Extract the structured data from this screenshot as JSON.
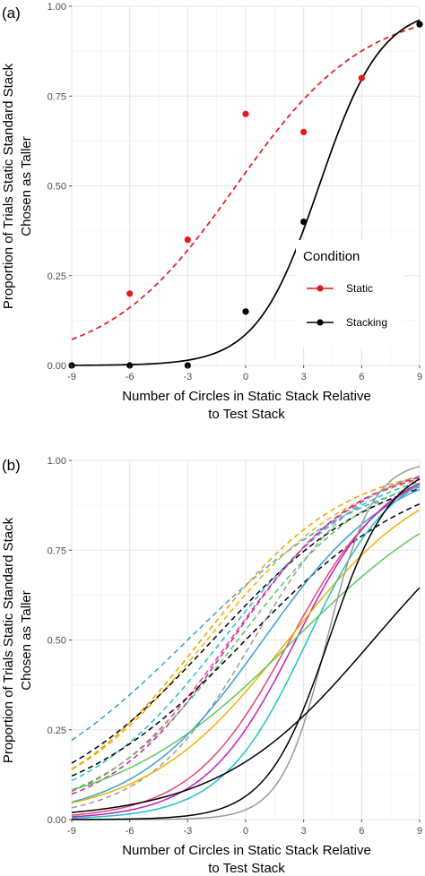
{
  "chart_data": [
    {
      "panel_tag": "(a)",
      "type": "scatter",
      "xlabel": [
        "Number of Circles in Static Stack Relative",
        "to Test Stack"
      ],
      "ylabel": [
        "Proportion of Trials Static Standard Stack",
        "Chosen as Taller"
      ],
      "xlim": [
        -9,
        9
      ],
      "ylim": [
        0,
        1
      ],
      "xticks": [
        -9,
        -6,
        -3,
        0,
        3,
        6,
        9
      ],
      "yticks": [
        0,
        0.25,
        0.5,
        0.75,
        1
      ],
      "xtick_labels": [
        "-9",
        "-6",
        "-3",
        "0",
        "3",
        "6",
        "9"
      ],
      "ytick_labels": [
        "0.00",
        "0.25",
        "0.50",
        "0.75",
        "1.00"
      ],
      "grid": true,
      "legend": {
        "title": "Condition",
        "placement": "right",
        "items": [
          {
            "label": "Static",
            "color": "#e31a1c"
          },
          {
            "label": "Stacking",
            "color": "#000000"
          }
        ]
      },
      "series": [
        {
          "name": "Static",
          "color": "#e31a1c",
          "points": [
            {
              "x": -9,
              "y": 0.0
            },
            {
              "x": -6,
              "y": 0.2
            },
            {
              "x": -3,
              "y": 0.35
            },
            {
              "x": 0,
              "y": 0.7
            },
            {
              "x": 3,
              "y": 0.65
            },
            {
              "x": 6,
              "y": 0.8
            },
            {
              "x": 9,
              "y": 0.95
            }
          ],
          "fit": {
            "model": "logistic",
            "midpoint": -0.5,
            "slope": 0.3,
            "dash": "6,4"
          }
        },
        {
          "name": "Stacking",
          "color": "#000000",
          "points": [
            {
              "x": -9,
              "y": 0.0
            },
            {
              "x": -6,
              "y": 0.0
            },
            {
              "x": -3,
              "y": 0.0
            },
            {
              "x": 0,
              "y": 0.15
            },
            {
              "x": 3,
              "y": 0.4
            },
            {
              "x": 9,
              "y": 0.95
            }
          ],
          "fit": {
            "model": "logistic",
            "midpoint": 3.8,
            "slope": 0.62,
            "dash": ""
          }
        }
      ]
    },
    {
      "panel_tag": "(b)",
      "type": "line",
      "xlabel": [
        "Number of Circles in Static Stack Relative",
        "to Test Stack"
      ],
      "ylabel": [
        "Proportion of Trials Static Standard Stack",
        "Chosen as Taller"
      ],
      "xlim": [
        -9,
        9
      ],
      "ylim": [
        0,
        1
      ],
      "xticks": [
        -9,
        -6,
        -3,
        0,
        3,
        6,
        9
      ],
      "yticks": [
        0,
        0.25,
        0.5,
        0.75,
        1
      ],
      "xtick_labels": [
        "-9",
        "-6",
        "-3",
        "0",
        "3",
        "6",
        "9"
      ],
      "ytick_labels": [
        "0.00",
        "0.25",
        "0.50",
        "0.75",
        "1.00"
      ],
      "grid": true,
      "curves": [
        {
          "color": "#3a9fd8",
          "dash": "6,4",
          "midpoint": -3.0,
          "slope": 0.21
        },
        {
          "color": "#f0b400",
          "dash": "6,4",
          "midpoint": -2.0,
          "slope": 0.26
        },
        {
          "color": "#f0a000",
          "dash": "6,4",
          "midpoint": -2.3,
          "slope": 0.27
        },
        {
          "color": "#000000",
          "dash": "6,4",
          "midpoint": -1.7,
          "slope": 0.23
        },
        {
          "color": "#1fc4c4",
          "dash": "6,4",
          "midpoint": -1.2,
          "slope": 0.27
        },
        {
          "color": "#e0457a",
          "dash": "6,4",
          "midpoint": -0.8,
          "slope": 0.3
        },
        {
          "color": "#c020c0",
          "dash": "6,4",
          "midpoint": -0.7,
          "slope": 0.31
        },
        {
          "color": "#5cc85c",
          "dash": "6,4",
          "midpoint": -0.4,
          "slope": 0.28
        },
        {
          "color": "#000000",
          "dash": "6,4",
          "midpoint": 0.0,
          "slope": 0.22
        },
        {
          "color": "#9a9a9a",
          "dash": "6,4",
          "midpoint": 0.4,
          "slope": 0.36
        },
        {
          "color": "#3a9fd8",
          "dash": "",
          "midpoint": 0.9,
          "slope": 0.3
        },
        {
          "color": "#e0457a",
          "dash": "",
          "midpoint": 2.3,
          "slope": 0.39
        },
        {
          "color": "#c020c0",
          "dash": "",
          "midpoint": 2.6,
          "slope": 0.42
        },
        {
          "color": "#f0b400",
          "dash": "",
          "midpoint": 2.2,
          "slope": 0.27
        },
        {
          "color": "#1fc4c4",
          "dash": "",
          "midpoint": 3.2,
          "slope": 0.45
        },
        {
          "color": "#5cc85c",
          "dash": "",
          "midpoint": 2.5,
          "slope": 0.21
        },
        {
          "color": "#9a9a9a",
          "dash": "",
          "midpoint": 4.2,
          "slope": 0.85
        },
        {
          "color": "#000000",
          "dash": "",
          "midpoint": 4.3,
          "slope": 0.62
        },
        {
          "color": "#000000",
          "dash": "",
          "midpoint": 6.6,
          "slope": 0.25
        }
      ]
    }
  ]
}
